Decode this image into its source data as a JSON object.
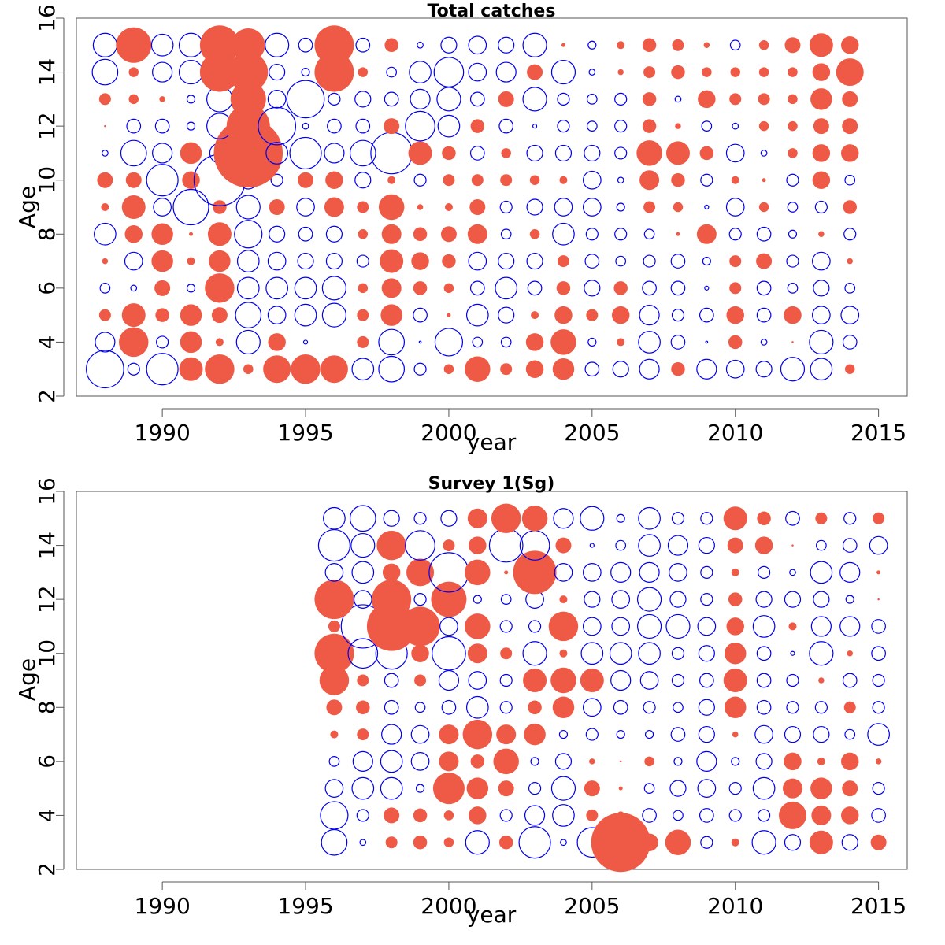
{
  "colors": {
    "positive": "#ee5a45",
    "negative": "#0000ee",
    "axis": "#555555"
  },
  "chart_data": [
    {
      "type": "scatter",
      "subtype": "bubble",
      "title": "Total catches",
      "xlabel": "year",
      "ylabel": "Age",
      "xlim": [
        1987,
        2016
      ],
      "ylim": [
        2,
        16
      ],
      "xticks": [
        1990,
        1995,
        2000,
        2005,
        2010,
        2015
      ],
      "yticks": [
        2,
        4,
        6,
        8,
        10,
        12,
        14,
        16
      ],
      "ages": [
        3,
        4,
        5,
        6,
        7,
        8,
        9,
        10,
        11,
        12,
        13,
        14,
        15
      ],
      "years": [
        1988,
        1989,
        1990,
        1991,
        1992,
        1993,
        1994,
        1995,
        1996,
        1997,
        1998,
        1999,
        2000,
        2001,
        2002,
        2003,
        2004,
        2005,
        2006,
        2007,
        2008,
        2009,
        2010,
        2011,
        2012,
        2013,
        2014
      ],
      "residuals": [
        [
          -19,
          -6,
          -16,
          12,
          15,
          5,
          14,
          15,
          14,
          -11,
          -13,
          -6,
          5,
          13,
          6,
          9,
          11,
          -7,
          -8,
          -10,
          7,
          -10,
          -9,
          -8,
          -12,
          -11,
          5
        ],
        [
          -10,
          15,
          -6,
          11,
          4,
          -12,
          9,
          -2,
          0,
          6,
          -13,
          -1,
          -14,
          -5,
          -5,
          9,
          13,
          -4,
          4,
          -11,
          -7,
          -1,
          7,
          -3,
          1,
          -12,
          -7
        ],
        [
          6,
          12,
          7,
          11,
          8,
          -13,
          -9,
          -11,
          -12,
          6,
          11,
          -7,
          2,
          -11,
          -8,
          4,
          9,
          6,
          9,
          -10,
          -6,
          -7,
          9,
          -7,
          9,
          -9,
          -9
        ],
        [
          -5,
          -3,
          8,
          -4,
          15,
          -11,
          -11,
          -11,
          -12,
          5,
          10,
          7,
          5,
          -7,
          -11,
          -7,
          7,
          -8,
          7,
          -7,
          -7,
          -2,
          6,
          -7,
          -5,
          -8,
          -5
        ],
        [
          3,
          -9,
          11,
          4,
          11,
          -11,
          -9,
          -8,
          -8,
          -6,
          12,
          9,
          7,
          -9,
          -8,
          -8,
          6,
          -7,
          -5,
          -6,
          -7,
          -4,
          6,
          8,
          -6,
          -9,
          3
        ],
        [
          -11,
          9,
          11,
          2,
          12,
          -14,
          -8,
          -7,
          -8,
          5,
          10,
          7,
          8,
          10,
          -5,
          5,
          -11,
          -6,
          -6,
          -5,
          2,
          10,
          -6,
          -7,
          -4,
          3,
          -6
        ],
        [
          4,
          12,
          -9,
          -18,
          7,
          -12,
          8,
          -9,
          10,
          6,
          13,
          3,
          4,
          8,
          -6,
          -8,
          -9,
          -9,
          -4,
          6,
          5,
          -2,
          -9,
          5,
          -5,
          -6,
          7
        ],
        [
          8,
          8,
          -16,
          9,
          -26,
          -9,
          -6,
          8,
          9,
          -8,
          4,
          -6,
          6,
          6,
          6,
          5,
          4,
          -9,
          -3,
          10,
          7,
          -6,
          4,
          2,
          -6,
          9,
          -5
        ],
        [
          -3,
          -13,
          -10,
          11,
          -10,
          35,
          -11,
          -16,
          -10,
          -13,
          -21,
          12,
          7,
          -7,
          5,
          -8,
          -8,
          -8,
          -6,
          13,
          12,
          7,
          -9,
          -3,
          5,
          9,
          9
        ],
        [
          1,
          -7,
          -7,
          -4,
          -13,
          22,
          -19,
          -3,
          -7,
          -7,
          8,
          -15,
          -11,
          7,
          -7,
          -2,
          -6,
          -5,
          -6,
          7,
          3,
          -5,
          -3,
          5,
          5,
          8,
          8
        ],
        [
          6,
          5,
          3,
          -4,
          -13,
          18,
          -9,
          -19,
          -6,
          -8,
          -7,
          -10,
          -12,
          -7,
          8,
          -12,
          -6,
          -5,
          -6,
          7,
          -3,
          9,
          6,
          6,
          5,
          11,
          8
        ],
        [
          -13,
          5,
          -10,
          -12,
          20,
          20,
          -8,
          -4,
          20,
          5,
          -5,
          -11,
          -15,
          -9,
          -10,
          8,
          -12,
          -3,
          3,
          6,
          7,
          5,
          5,
          5,
          5,
          9,
          14
        ],
        [
          -12,
          18,
          -11,
          -12,
          20,
          17,
          -12,
          -7,
          20,
          -7,
          7,
          -3,
          -8,
          -9,
          -8,
          -12,
          2,
          -4,
          4,
          7,
          6,
          3,
          -5,
          5,
          8,
          12,
          9
        ]
      ]
    },
    {
      "type": "scatter",
      "subtype": "bubble",
      "title": "Survey 1(Sg)",
      "xlabel": "year",
      "ylabel": "Age",
      "xlim": [
        1987,
        2016
      ],
      "ylim": [
        2,
        16
      ],
      "xticks": [
        1990,
        1995,
        2000,
        2005,
        2010,
        2015
      ],
      "yticks": [
        2,
        4,
        6,
        8,
        10,
        12,
        14,
        16
      ],
      "ages": [
        3,
        4,
        5,
        6,
        7,
        8,
        9,
        10,
        11,
        12,
        13,
        14,
        15
      ],
      "years": [
        1996,
        1997,
        1998,
        1999,
        2000,
        2001,
        2002,
        2003,
        2004,
        2005,
        2006,
        2007,
        2008,
        2009,
        2010,
        2011,
        2012,
        2013,
        2014,
        2015
      ],
      "residuals": [
        [
          -13,
          -3,
          6,
          7,
          5,
          -12,
          7,
          -16,
          -3,
          -15,
          30,
          9,
          13,
          -6,
          4,
          -12,
          -8,
          12,
          -8,
          8
        ],
        [
          -14,
          -6,
          8,
          7,
          5,
          9,
          -6,
          -10,
          -11,
          6,
          4,
          -7,
          -5,
          -7,
          -6,
          -6,
          14,
          10,
          9,
          -7
        ],
        [
          -9,
          -11,
          -11,
          -4,
          16,
          11,
          8,
          -6,
          -12,
          8,
          2,
          -5,
          -8,
          -9,
          -6,
          -11,
          10,
          11,
          8,
          -6
        ],
        [
          -5,
          -10,
          -11,
          -9,
          10,
          7,
          13,
          -4,
          -8,
          3,
          1,
          5,
          -4,
          -10,
          -4,
          -8,
          9,
          4,
          9,
          3
        ],
        [
          4,
          6,
          -10,
          -9,
          10,
          15,
          10,
          11,
          -4,
          -6,
          -4,
          -4,
          -7,
          -8,
          3,
          -9,
          -8,
          -8,
          -5,
          -11
        ],
        [
          8,
          7,
          -7,
          -5,
          -7,
          -11,
          -6,
          7,
          11,
          -9,
          -7,
          -6,
          -5,
          -8,
          11,
          -7,
          -6,
          -6,
          6,
          -6
        ],
        [
          15,
          6,
          -7,
          6,
          -10,
          -9,
          -6,
          12,
          13,
          12,
          -10,
          -9,
          -6,
          -7,
          12,
          -7,
          -6,
          3,
          -7,
          -6
        ],
        [
          20,
          -15,
          -16,
          9,
          -17,
          10,
          6,
          -12,
          4,
          -11,
          -11,
          -11,
          -6,
          -8,
          11,
          -7,
          -2,
          -12,
          3,
          -7
        ],
        [
          6,
          -22,
          25,
          20,
          -9,
          13,
          -6,
          -6,
          15,
          -9,
          -9,
          -12,
          -12,
          -9,
          9,
          -11,
          4,
          -10,
          -10,
          -7
        ],
        [
          20,
          -9,
          20,
          -6,
          18,
          -4,
          -5,
          -9,
          4,
          -8,
          -9,
          -12,
          -8,
          -6,
          7,
          -8,
          -8,
          -8,
          -4,
          1
        ],
        [
          -9,
          -11,
          9,
          14,
          -20,
          13,
          2,
          22,
          -9,
          -9,
          -10,
          -10,
          -9,
          -6,
          4,
          -6,
          -3,
          -11,
          -10,
          2
        ],
        [
          -16,
          -12,
          15,
          -15,
          6,
          9,
          -17,
          -15,
          8,
          -2,
          -5,
          -11,
          -10,
          -8,
          8,
          9,
          1,
          -5,
          -7,
          -9
        ],
        [
          -11,
          -13,
          -8,
          -6,
          -8,
          10,
          15,
          13,
          -10,
          -12,
          -4,
          -11,
          -6,
          -6,
          12,
          7,
          -7,
          6,
          -6,
          6
        ]
      ]
    }
  ]
}
